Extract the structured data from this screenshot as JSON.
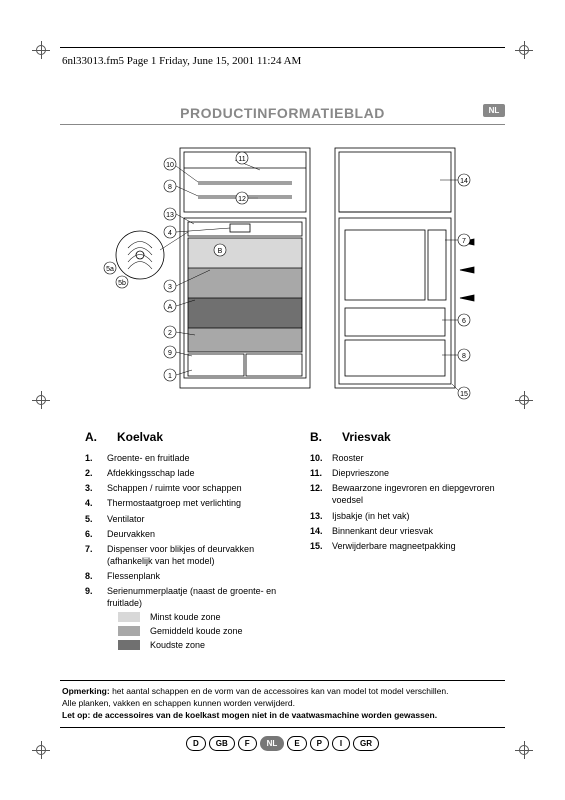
{
  "header": {
    "filename": "6nl33013.fm5  Page 1  Friday, June 15, 2001  11:24 AM"
  },
  "title": "PRODUCTINFORMATIEBLAD",
  "badge": "NL",
  "diagram": {
    "callouts_left": [
      "10",
      "8",
      "13",
      "4",
      "5b",
      "5a",
      "3",
      "A",
      "2",
      "9",
      "1"
    ],
    "callouts_mid": [
      "11",
      "12",
      "B"
    ],
    "callouts_right": [
      "14",
      "7",
      "6",
      "8",
      "15"
    ]
  },
  "section_a": {
    "letter": "A.",
    "heading": "Koelvak",
    "items": [
      {
        "n": "1.",
        "t": "Groente- en fruitlade"
      },
      {
        "n": "2.",
        "t": "Afdekkingsschap lade"
      },
      {
        "n": "3.",
        "t": "Schappen / ruimte voor schappen"
      },
      {
        "n": "4.",
        "t": "Thermostaatgroep met verlichting"
      },
      {
        "n": "5.",
        "t": "Ventilator"
      },
      {
        "n": "6.",
        "t": "Deurvakken"
      },
      {
        "n": "7.",
        "t": "Dispenser voor blikjes of deurvakken (afhankelijk van het model)"
      },
      {
        "n": "8.",
        "t": "Flessenplank"
      },
      {
        "n": "9.",
        "t": "Serienummerplaatje (naast de groente- en fruitlade)"
      }
    ]
  },
  "section_b": {
    "letter": "B.",
    "heading": "Vriesvak",
    "items": [
      {
        "n": "10.",
        "t": "Rooster"
      },
      {
        "n": "11.",
        "t": "Diepvrieszone"
      },
      {
        "n": "12.",
        "t": "Bewaarzone ingevroren en diepgevroren voedsel"
      },
      {
        "n": "13.",
        "t": "Ijsbakje (in het vak)"
      },
      {
        "n": "14.",
        "t": "Binnenkant deur vriesvak"
      },
      {
        "n": "15.",
        "t": "Verwijderbare magneetpakking"
      }
    ]
  },
  "legend": [
    {
      "color": "#d8d8d8",
      "label": "Minst koude zone"
    },
    {
      "color": "#a8a8a8",
      "label": "Gemiddeld koude zone"
    },
    {
      "color": "#707070",
      "label": "Koudste zone"
    }
  ],
  "note": {
    "bold1": "Opmerking:",
    "line1": " het aantal schappen en de vorm van de accessoires kan van model tot model verschillen.",
    "line2": "Alle planken, vakken en schappen kunnen worden verwijderd.",
    "bold2": "Let op: de accessoires van de koelkast mogen niet in de vaatwasmachine worden gewassen."
  },
  "languages": [
    "D",
    "GB",
    "F",
    "NL",
    "E",
    "P",
    "I",
    "GR"
  ],
  "active_lang": "NL"
}
